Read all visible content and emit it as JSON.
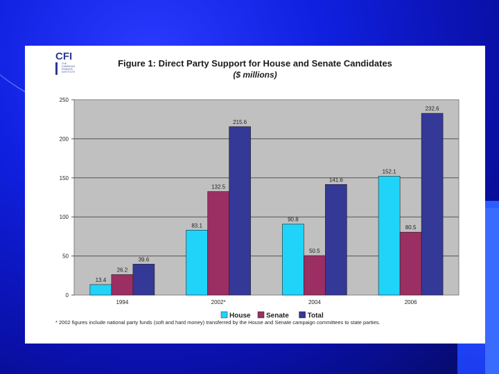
{
  "logo": {
    "main": "CFI",
    "sub": "THE CAMPAIGN FINANCE INSTITUTE"
  },
  "colors": {
    "house": "#1fd4f8",
    "senate": "#9b2f63",
    "total": "#343896",
    "plot_bg": "#c0c0c0"
  },
  "chart_data": {
    "type": "bar",
    "title": "Figure 1: Direct Party Support for House and Senate Candidates",
    "subtitle": "($ millions)",
    "categories": [
      "1994",
      "2002*",
      "2004",
      "2006"
    ],
    "series": [
      {
        "name": "House",
        "values": [
          13.4,
          83.1,
          90.8,
          152.1
        ]
      },
      {
        "name": "Senate",
        "values": [
          26.2,
          132.5,
          50.5,
          80.5
        ]
      },
      {
        "name": "Total",
        "values": [
          39.6,
          215.6,
          141.6,
          232.6
        ]
      }
    ],
    "yticks": [
      "0",
      "50",
      "100",
      "150",
      "200",
      "250"
    ],
    "ylim": [
      0,
      250
    ],
    "grid": true,
    "legend": "bottom"
  },
  "footnote": "* 2002 figures include national party funds (soft and hard money) transferred by the House and Senate campaign committees to state parties."
}
